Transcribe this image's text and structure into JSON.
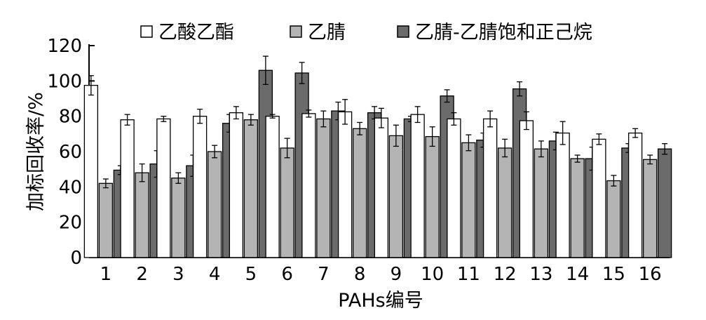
{
  "chart_data": {
    "type": "bar",
    "xlabel": "PAHs编号",
    "ylabel": "加标回收率/%",
    "ylim": [
      0,
      120
    ],
    "yticks": [
      0,
      20,
      40,
      60,
      80,
      100,
      120
    ],
    "grid": false,
    "legend_position": "top",
    "categories": [
      "1",
      "2",
      "3",
      "4",
      "5",
      "6",
      "7",
      "8",
      "9",
      "10",
      "11",
      "12",
      "13",
      "14",
      "15",
      "16"
    ],
    "series": [
      {
        "name": "乙酸乙酯",
        "color": "#ffffff",
        "values": [
          97.5,
          78,
          78.5,
          80,
          82,
          80,
          81.5,
          82.5,
          79,
          81,
          78.5,
          78.5,
          77.5,
          70.5,
          67,
          70.5
        ],
        "errors": [
          5.5,
          3,
          1.5,
          4,
          3.5,
          1,
          2,
          7,
          5.5,
          4.5,
          3.5,
          4.5,
          5,
          6.5,
          3,
          2.5
        ]
      },
      {
        "name": "乙腈",
        "color": "#b4b4b4",
        "values": [
          42,
          48,
          45,
          60,
          78,
          62,
          78.5,
          73,
          69,
          68.5,
          65,
          62,
          61.5,
          56,
          43.5,
          55.5
        ],
        "errors": [
          2.5,
          5,
          3,
          3.5,
          3,
          5.5,
          4.5,
          3.5,
          6,
          5.5,
          4.5,
          5,
          4.5,
          2,
          3,
          2.5
        ]
      },
      {
        "name": "乙腈-乙腈饱和正己烷",
        "color": "#6b6b6b",
        "values": [
          49.5,
          53,
          52,
          76,
          106,
          104.5,
          83,
          82,
          78.5,
          91.5,
          66.5,
          95.5,
          66,
          56,
          62,
          61.5
        ],
        "errors": [
          2.5,
          7.5,
          6,
          5,
          8,
          6,
          5,
          3.5,
          1.5,
          3.5,
          4,
          4,
          5,
          6.5,
          2.5,
          3
        ]
      }
    ]
  }
}
